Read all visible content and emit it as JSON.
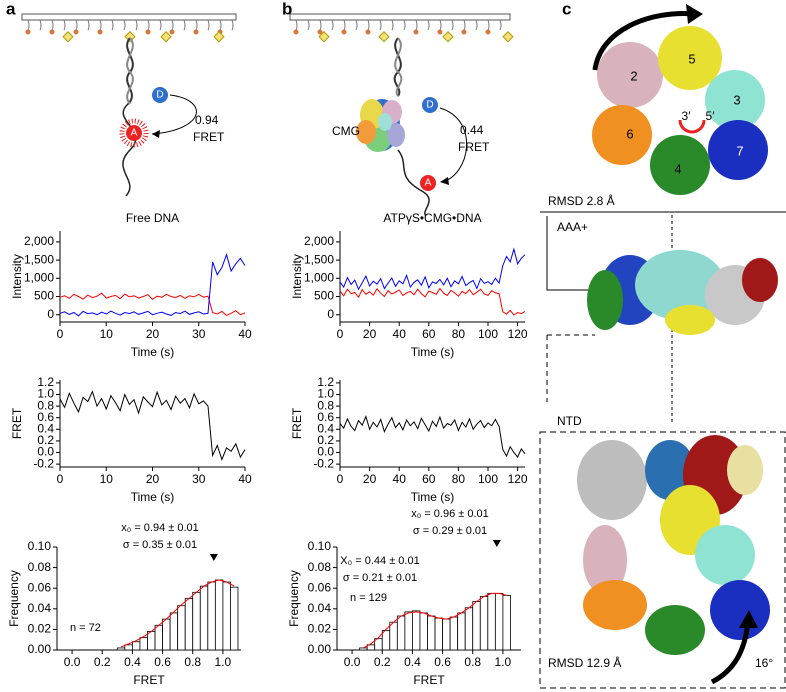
{
  "panel_labels": [
    "a",
    "b",
    "c"
  ],
  "diagram": {
    "a": {
      "fret_value": "0.94",
      "fret_label": "FRET",
      "donor": "D",
      "acceptor": "A"
    },
    "b": {
      "complex": "CMG",
      "fret_value": "0.44",
      "fret_label": "FRET",
      "donor": "D",
      "acceptor": "A"
    },
    "c": {
      "subunits": [
        "2",
        "5",
        "3",
        "6",
        "7",
        "4"
      ],
      "strand_3": "3′",
      "strand_5": "5′",
      "rmsd_top": "RMSD 2.8 Å",
      "aaa": "AAA+",
      "ntd": "NTD",
      "rmsd_bottom": "RMSD 12.9 Å",
      "rotation": "16°"
    }
  },
  "chart_data": [
    {
      "type": "line",
      "title": "Free DNA",
      "ylabel": "Intensity",
      "xlabel": "Time (s)",
      "x": [
        0,
        1,
        2,
        3,
        4,
        5,
        6,
        7,
        8,
        9,
        10,
        11,
        12,
        13,
        14,
        15,
        16,
        17,
        18,
        19,
        20,
        21,
        22,
        23,
        24,
        25,
        26,
        27,
        28,
        29,
        30,
        31,
        32,
        33,
        34,
        35,
        36,
        37,
        38,
        39,
        40
      ],
      "series": [
        {
          "color": "#ff0000",
          "values": [
            480,
            520,
            450,
            560,
            500,
            430,
            540,
            470,
            510,
            590,
            460,
            500,
            530,
            440,
            570,
            490,
            520,
            460,
            500,
            550,
            420,
            510,
            480,
            560,
            500,
            470,
            530,
            450,
            520,
            490,
            560,
            480,
            510,
            60,
            20,
            90,
            -20,
            40,
            110,
            0,
            50
          ]
        },
        {
          "color": "#0000ff",
          "values": [
            40,
            80,
            10,
            60,
            -30,
            90,
            30,
            50,
            0,
            70,
            20,
            100,
            40,
            -10,
            60,
            30,
            80,
            10,
            50,
            90,
            0,
            40,
            70,
            20,
            -20,
            60,
            30,
            100,
            10,
            50,
            80,
            20,
            40,
            1450,
            1100,
            1300,
            1650,
            1200,
            1400,
            1550,
            1350
          ]
        }
      ],
      "xlim": [
        0,
        40
      ],
      "xticks": [
        0,
        10,
        20,
        30,
        40
      ],
      "ylim": [
        -200,
        2300
      ],
      "yticks": [
        0,
        500,
        {
          "value": 1000,
          "label": "1,000"
        },
        {
          "value": 1500,
          "label": "1,500"
        },
        {
          "value": 2000,
          "label": "2,000"
        }
      ],
      "grid": false
    },
    {
      "type": "line",
      "title": "ATPγS•CMG•DNA",
      "ylabel": "Intensity",
      "xlabel": "Time (s)",
      "x": [
        0,
        2.5,
        5,
        7.5,
        10,
        12.5,
        15,
        17.5,
        20,
        22.5,
        25,
        27.5,
        30,
        32.5,
        35,
        37.5,
        40,
        42.5,
        45,
        47.5,
        50,
        52.5,
        55,
        57.5,
        60,
        62.5,
        65,
        67.5,
        70,
        72.5,
        75,
        77.5,
        80,
        82.5,
        85,
        87.5,
        90,
        92.5,
        95,
        97.5,
        100,
        102.5,
        105,
        107.5,
        110,
        112.5,
        115,
        117.5,
        120,
        122.5,
        125
      ],
      "series": [
        {
          "color": "#0000ff",
          "values": [
            900,
            760,
            1020,
            830,
            950,
            700,
            880,
            1060,
            790,
            920,
            840,
            990,
            720,
            870,
            1010,
            780,
            930,
            850,
            1080,
            760,
            890,
            960,
            810,
            1040,
            740,
            900,
            860,
            970,
            820,
            1000,
            770,
            930,
            850,
            1050,
            800,
            880,
            940,
            720,
            990,
            860,
            910,
            830,
            1000,
            870,
            1350,
            1600,
            1450,
            1800,
            1400,
            1550,
            1650
          ]
        },
        {
          "color": "#ff0000",
          "values": [
            650,
            520,
            700,
            580,
            610,
            480,
            690,
            560,
            630,
            540,
            710,
            590,
            500,
            660,
            570,
            620,
            680,
            530,
            600,
            640,
            550,
            700,
            580,
            490,
            650,
            610,
            560,
            720,
            590,
            530,
            670,
            600,
            510,
            640,
            580,
            690,
            550,
            620,
            700,
            570,
            530,
            660,
            600,
            580,
            80,
            20,
            120,
            -10,
            60,
            30,
            90
          ]
        }
      ],
      "xlim": [
        0,
        125
      ],
      "xticks": [
        0,
        20,
        40,
        60,
        80,
        100,
        120
      ],
      "ylim": [
        -200,
        2300
      ],
      "yticks": [
        0,
        500,
        {
          "value": 1000,
          "label": "1,000"
        },
        {
          "value": 1500,
          "label": "1,500"
        },
        {
          "value": 2000,
          "label": "2,000"
        }
      ],
      "grid": false
    },
    {
      "type": "line",
      "ylabel": "FRET",
      "xlabel": "Time (s)",
      "x": [
        0,
        1,
        2,
        3,
        4,
        5,
        6,
        7,
        8,
        9,
        10,
        11,
        12,
        13,
        14,
        15,
        16,
        17,
        18,
        19,
        20,
        21,
        22,
        23,
        24,
        25,
        26,
        27,
        28,
        29,
        30,
        31,
        32,
        33,
        34,
        35,
        36,
        37,
        38,
        39,
        40
      ],
      "series": [
        {
          "color": "#000000",
          "values": [
            0.92,
            0.78,
            1.02,
            0.85,
            0.7,
            0.95,
            0.88,
            1.05,
            0.8,
            0.93,
            0.75,
            0.98,
            0.86,
            0.72,
            1.0,
            0.83,
            0.91,
            0.68,
            0.96,
            0.87,
            0.79,
            1.04,
            0.82,
            0.9,
            0.74,
            0.97,
            0.85,
            0.93,
            0.77,
            1.01,
            0.84,
            0.89,
            0.8,
            -0.05,
            0.12,
            -0.12,
            0.08,
            0.02,
            0.15,
            -0.08,
            0.05
          ]
        }
      ],
      "xlim": [
        0,
        40
      ],
      "xticks": [
        0,
        10,
        20,
        30,
        40
      ],
      "ylim": [
        -0.25,
        1.25
      ],
      "yticks": [
        -0.2,
        {
          "value": 0,
          "label": "0.0"
        },
        0.2,
        0.4,
        0.6,
        0.8,
        {
          "value": 1,
          "label": "1.0"
        },
        1.2
      ],
      "grid": false
    },
    {
      "type": "line",
      "ylabel": "FRET",
      "xlabel": "Time (s)",
      "x": [
        0,
        2.5,
        5,
        7.5,
        10,
        12.5,
        15,
        17.5,
        20,
        22.5,
        25,
        27.5,
        30,
        32.5,
        35,
        37.5,
        40,
        42.5,
        45,
        47.5,
        50,
        52.5,
        55,
        57.5,
        60,
        62.5,
        65,
        67.5,
        70,
        72.5,
        75,
        77.5,
        80,
        82.5,
        85,
        87.5,
        90,
        92.5,
        95,
        97.5,
        100,
        102.5,
        105,
        107.5,
        110,
        112.5,
        115,
        117.5,
        120,
        122.5,
        125
      ],
      "series": [
        {
          "color": "#000000",
          "values": [
            0.5,
            0.42,
            0.58,
            0.45,
            0.38,
            0.55,
            0.47,
            0.62,
            0.4,
            0.52,
            0.44,
            0.57,
            0.36,
            0.49,
            0.6,
            0.43,
            0.51,
            0.39,
            0.56,
            0.46,
            0.53,
            0.41,
            0.59,
            0.48,
            0.37,
            0.54,
            0.45,
            0.61,
            0.42,
            0.5,
            0.47,
            0.56,
            0.38,
            0.52,
            0.44,
            0.58,
            0.4,
            0.49,
            0.55,
            0.43,
            0.51,
            0.46,
            0.57,
            0.45,
            0.05,
            -0.06,
            0.1,
            0.0,
            -0.08,
            0.06,
            -0.02
          ]
        }
      ],
      "xlim": [
        0,
        125
      ],
      "xticks": [
        0,
        20,
        40,
        60,
        80,
        100,
        120
      ],
      "ylim": [
        -0.25,
        1.25
      ],
      "yticks": [
        -0.2,
        {
          "value": 0,
          "label": "0.0"
        },
        0.2,
        0.4,
        0.6,
        0.8,
        {
          "value": 1,
          "label": "1.0"
        },
        1.2
      ],
      "grid": false
    },
    {
      "type": "histogram",
      "ylabel": "Frequency",
      "xlabel": "FRET",
      "color": "#ffffff",
      "bins": [
        0.3,
        0.35,
        0.4,
        0.45,
        0.5,
        0.55,
        0.6,
        0.65,
        0.7,
        0.75,
        0.8,
        0.85,
        0.9,
        0.95,
        1.0,
        1.05,
        1.1
      ],
      "values": [
        0.002,
        0.005,
        0.008,
        0.012,
        0.018,
        0.024,
        0.03,
        0.036,
        0.043,
        0.05,
        0.056,
        0.062,
        0.066,
        0.068,
        0.066,
        0.061
      ],
      "fit": {
        "color": "#ff0000",
        "x": [
          0.325,
          0.375,
          0.425,
          0.475,
          0.525,
          0.575,
          0.625,
          0.675,
          0.725,
          0.775,
          0.825,
          0.875,
          0.925,
          0.975,
          1.025,
          1.075
        ],
        "values": [
          0.003,
          0.006,
          0.009,
          0.013,
          0.018,
          0.024,
          0.03,
          0.037,
          0.044,
          0.05,
          0.056,
          0.062,
          0.066,
          0.068,
          0.066,
          0.062
        ]
      },
      "markers": [
        0.94
      ],
      "annotations": [
        "x₀ = 0.94 ± 0.01",
        "σ = 0.35 ± 0.01",
        "n = 72"
      ],
      "xlim": [
        -0.1,
        1.12
      ],
      "xticks": [
        {
          "value": 0,
          "label": "0.0"
        },
        0.2,
        0.4,
        0.6,
        0.8,
        {
          "value": 1,
          "label": "1.0"
        }
      ],
      "ylim": [
        0,
        0.1
      ],
      "yticks": [
        {
          "value": 0,
          "label": "0.00"
        },
        {
          "value": 0.02,
          "label": "0.02"
        },
        {
          "value": 0.04,
          "label": "0.04"
        },
        {
          "value": 0.06,
          "label": "0.06"
        },
        {
          "value": 0.08,
          "label": "0.08"
        },
        {
          "value": 0.1,
          "label": "0.10"
        }
      ],
      "grid": false
    },
    {
      "type": "histogram",
      "ylabel": "Frequency",
      "xlabel": "FRET",
      "color": "#ffffff",
      "bins": [
        0.05,
        0.1,
        0.15,
        0.2,
        0.25,
        0.3,
        0.35,
        0.4,
        0.45,
        0.5,
        0.55,
        0.6,
        0.65,
        0.7,
        0.75,
        0.8,
        0.85,
        0.9,
        0.95,
        1.0,
        1.05
      ],
      "values": [
        0.002,
        0.005,
        0.011,
        0.019,
        0.027,
        0.033,
        0.037,
        0.038,
        0.036,
        0.033,
        0.031,
        0.03,
        0.032,
        0.036,
        0.041,
        0.047,
        0.052,
        0.055,
        0.055,
        0.053
      ],
      "fit": {
        "color": "#ff0000",
        "x": [
          0.075,
          0.125,
          0.175,
          0.225,
          0.275,
          0.325,
          0.375,
          0.425,
          0.475,
          0.525,
          0.575,
          0.625,
          0.675,
          0.725,
          0.775,
          0.825,
          0.875,
          0.925,
          0.975,
          1.025
        ],
        "values": [
          0.002,
          0.006,
          0.012,
          0.02,
          0.027,
          0.033,
          0.036,
          0.037,
          0.036,
          0.033,
          0.031,
          0.03,
          0.032,
          0.036,
          0.041,
          0.047,
          0.052,
          0.055,
          0.055,
          0.053
        ]
      },
      "markers": [
        0.96
      ],
      "annotations": [
        "x₀ = 0.96 ±  0.01",
        "σ = 0.29 ±  0.01",
        "X₀ = 0.44 ±  0.01",
        "σ = 0.21 ±  0.01",
        "n = 129"
      ],
      "xlim": [
        -0.1,
        1.12
      ],
      "xticks": [
        {
          "value": 0,
          "label": "0.0"
        },
        0.2,
        0.4,
        0.6,
        0.8,
        {
          "value": 1,
          "label": "1.0"
        }
      ],
      "ylim": [
        0,
        0.1
      ],
      "yticks": [
        {
          "value": 0,
          "label": "0.00"
        },
        {
          "value": 0.02,
          "label": "0.02"
        },
        {
          "value": 0.04,
          "label": "0.04"
        },
        {
          "value": 0.06,
          "label": "0.06"
        },
        {
          "value": 0.08,
          "label": "0.08"
        },
        {
          "value": 0.1,
          "label": "0.10"
        }
      ],
      "grid": false
    }
  ]
}
